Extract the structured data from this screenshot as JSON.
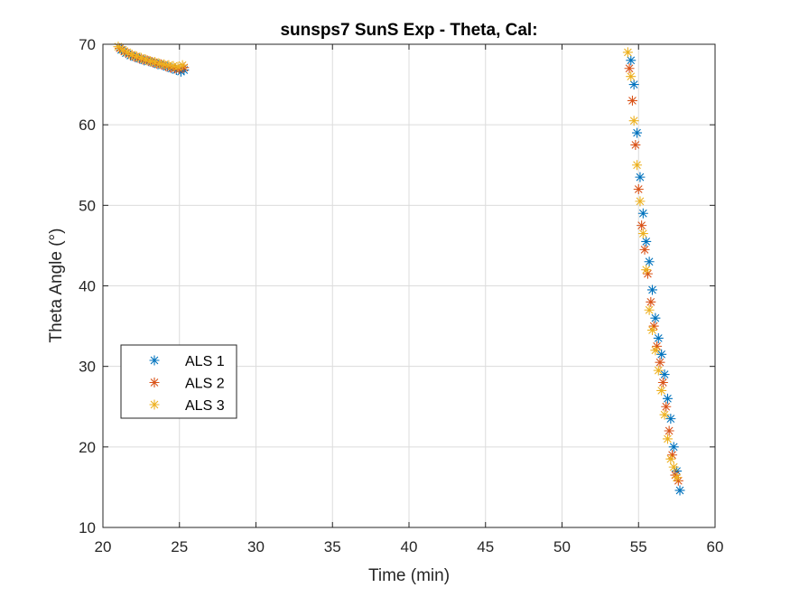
{
  "chart_data": {
    "type": "scatter",
    "title": "sunsps7 SunS Exp - Theta, Cal:",
    "xlabel": "Time (min)",
    "ylabel": "Theta Angle (°)",
    "xlim": [
      20,
      60
    ],
    "ylim": [
      10,
      70
    ],
    "xticks": [
      "20",
      "25",
      "30",
      "35",
      "40",
      "45",
      "50",
      "55",
      "60"
    ],
    "yticks": [
      "10",
      "20",
      "30",
      "40",
      "50",
      "60",
      "70"
    ],
    "grid": true,
    "marker": "asterisk",
    "legend": {
      "placement": "lower-left"
    },
    "series": [
      {
        "name": "ALS 1",
        "color": "#0072BD",
        "x": [
          21.2,
          21.5,
          21.8,
          22.1,
          22.4,
          22.7,
          23.0,
          23.3,
          23.6,
          23.9,
          24.2,
          24.5,
          24.8,
          25.1,
          25.3,
          54.5,
          54.7,
          54.9,
          55.1,
          55.3,
          55.5,
          55.7,
          55.9,
          56.1,
          56.3,
          56.5,
          56.7,
          56.9,
          57.1,
          57.3,
          57.5,
          57.7
        ],
        "y": [
          69.3,
          68.9,
          68.6,
          68.4,
          68.2,
          68.0,
          67.9,
          67.7,
          67.5,
          67.4,
          67.2,
          67.0,
          66.8,
          66.6,
          66.8,
          68.0,
          65.0,
          59.0,
          53.5,
          49.0,
          45.5,
          43.0,
          39.5,
          36.0,
          33.5,
          31.5,
          29.0,
          26.0,
          23.5,
          20.0,
          17.0,
          14.6
        ]
      },
      {
        "name": "ALS 2",
        "color": "#D95319",
        "x": [
          21.1,
          21.4,
          21.7,
          22.0,
          22.3,
          22.6,
          22.9,
          23.2,
          23.5,
          23.8,
          24.1,
          24.4,
          24.7,
          25.0,
          25.3,
          54.4,
          54.6,
          54.8,
          55.0,
          55.2,
          55.4,
          55.6,
          55.8,
          56.0,
          56.2,
          56.4,
          56.6,
          56.8,
          57.0,
          57.2,
          57.4,
          57.6
        ],
        "y": [
          69.5,
          69.1,
          68.8,
          68.5,
          68.3,
          68.1,
          68.0,
          67.8,
          67.6,
          67.5,
          67.3,
          67.1,
          67.0,
          66.9,
          67.1,
          67.0,
          63.0,
          57.5,
          52.0,
          47.5,
          44.5,
          41.5,
          38.0,
          35.0,
          32.5,
          30.5,
          28.0,
          25.0,
          22.0,
          19.0,
          16.5,
          15.8
        ]
      },
      {
        "name": "ALS 3",
        "color": "#EDB120",
        "x": [
          21.0,
          21.3,
          21.6,
          21.9,
          22.2,
          22.5,
          22.8,
          23.1,
          23.4,
          23.7,
          24.0,
          24.3,
          24.6,
          24.9,
          25.2,
          54.3,
          54.5,
          54.7,
          54.9,
          55.1,
          55.3,
          55.5,
          55.7,
          55.9,
          56.1,
          56.3,
          56.5,
          56.7,
          56.9,
          57.1,
          57.3,
          57.5
        ],
        "y": [
          69.7,
          69.3,
          69.0,
          68.7,
          68.5,
          68.3,
          68.1,
          67.9,
          67.8,
          67.6,
          67.5,
          67.4,
          67.3,
          67.2,
          67.4,
          69.0,
          66.0,
          60.5,
          55.0,
          50.5,
          46.5,
          42.0,
          37.0,
          34.5,
          32.0,
          29.5,
          27.0,
          24.0,
          21.0,
          18.5,
          17.5,
          16.2
        ]
      }
    ]
  }
}
